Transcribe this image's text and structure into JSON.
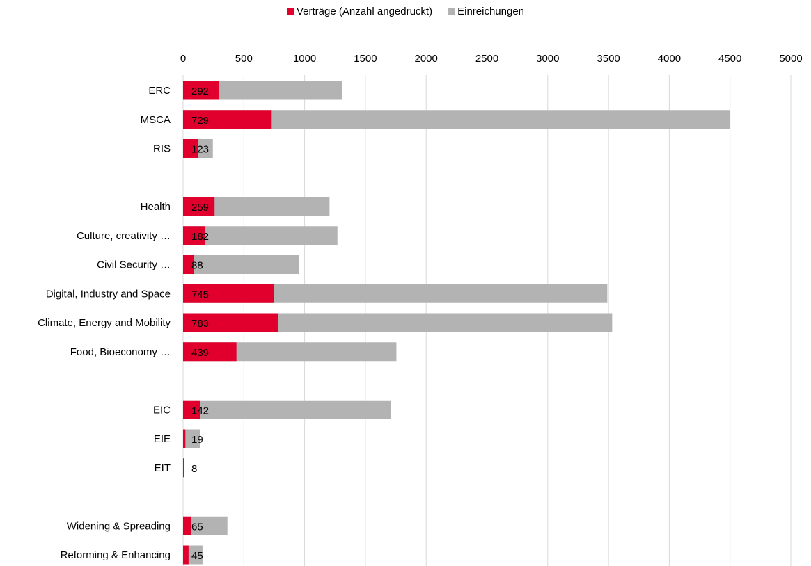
{
  "chart_data": {
    "type": "bar",
    "orientation": "horizontal",
    "stacking": "overlay",
    "title": "",
    "xlabel": "",
    "ylabel": "",
    "xlim": [
      0,
      5000
    ],
    "x_ticks": [
      0,
      500,
      1000,
      1500,
      2000,
      2500,
      3000,
      3500,
      4000,
      4500,
      5000
    ],
    "x_axis_position": "top",
    "grid": true,
    "legend_position": "top-center",
    "categories": [
      "ERC",
      "MSCA",
      "RIS",
      "",
      "Health",
      "Culture, creativity …",
      "Civil Security …",
      "Digital, Industry and Space",
      "Climate, Energy and Mobility",
      "Food, Bioeconomy …",
      "",
      "EIC",
      "EIE",
      "EIT",
      "",
      "Widening & Spreading",
      "Reforming & Enhancing"
    ],
    "series": [
      {
        "name": "Einreichungen",
        "color": "#b3b3b3",
        "values": [
          1310,
          4500,
          245,
          null,
          1205,
          1270,
          955,
          3490,
          3530,
          1755,
          null,
          1710,
          140,
          5,
          null,
          365,
          160
        ]
      },
      {
        "name": "Verträge (Anzahl angedruckt)",
        "color": "#e1002d",
        "values": [
          292,
          729,
          123,
          null,
          259,
          182,
          88,
          745,
          783,
          439,
          null,
          142,
          19,
          8,
          null,
          65,
          45
        ],
        "data_labels": true
      }
    ]
  },
  "legend": {
    "items": [
      {
        "label": "Verträge (Anzahl angedruckt)",
        "color": "#e1002d"
      },
      {
        "label": "Einreichungen",
        "color": "#b3b3b3"
      }
    ]
  }
}
